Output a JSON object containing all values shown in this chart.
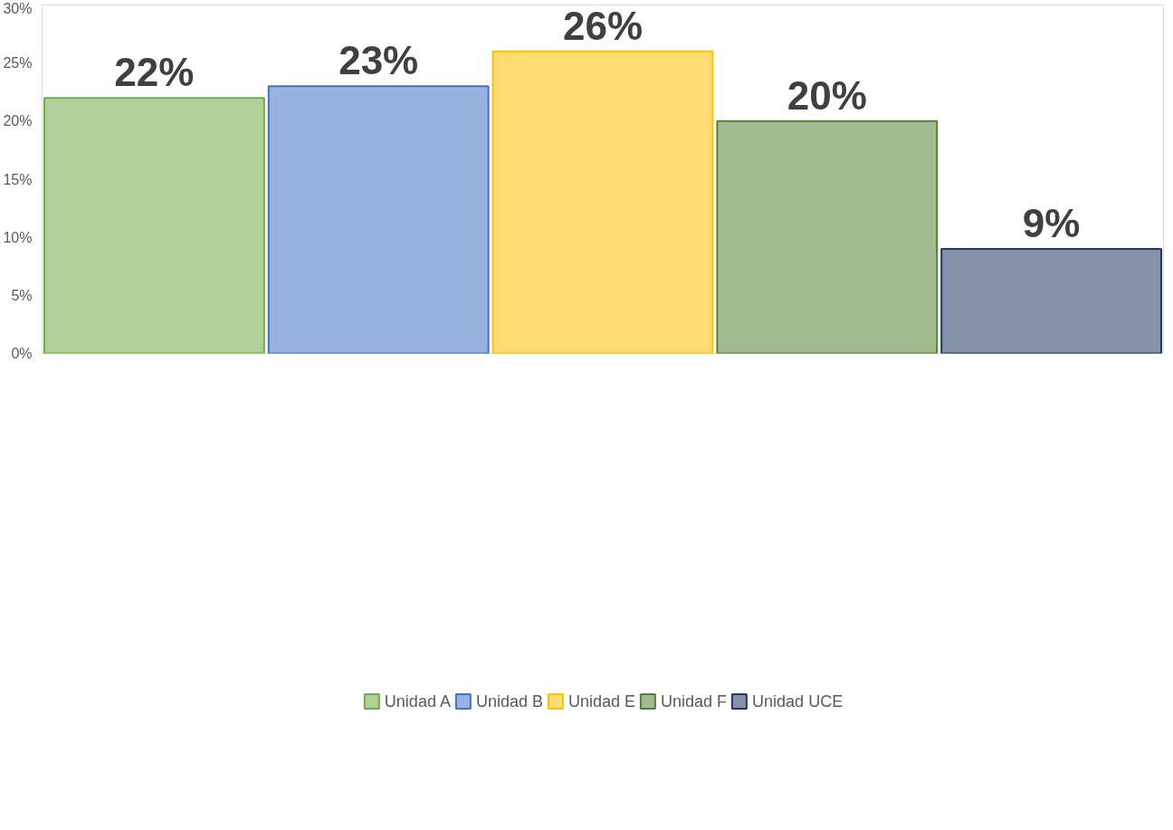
{
  "chart_data": {
    "type": "bar",
    "categories": [
      null
    ],
    "series": [
      {
        "name": "Unidad A",
        "color": "#70ad47",
        "values": [
          22
        ]
      },
      {
        "name": "Unidad B",
        "color": "#4472c4",
        "values": [
          23
        ]
      },
      {
        "name": "Unidad E",
        "color": "#ffc000",
        "values": [
          26
        ]
      },
      {
        "name": "Unidad F",
        "color": "#548235",
        "values": [
          20
        ]
      },
      {
        "name": "Unidad UCE",
        "color": "#203864",
        "values": [
          9
        ]
      }
    ],
    "ylim": [
      0,
      30
    ],
    "yticks": [
      {
        "value": 0,
        "label": "0%"
      },
      {
        "value": 5,
        "label": "5%"
      },
      {
        "value": 10,
        "label": "10%"
      },
      {
        "value": 15,
        "label": "15%"
      },
      {
        "value": 20,
        "label": "20%"
      },
      {
        "value": 25,
        "label": "25%"
      },
      {
        "value": 30,
        "label": "30%"
      }
    ],
    "value_labels": [
      "22%",
      "23%",
      "26%",
      "20%",
      "9%"
    ],
    "grid": false,
    "legend": "bottom"
  }
}
